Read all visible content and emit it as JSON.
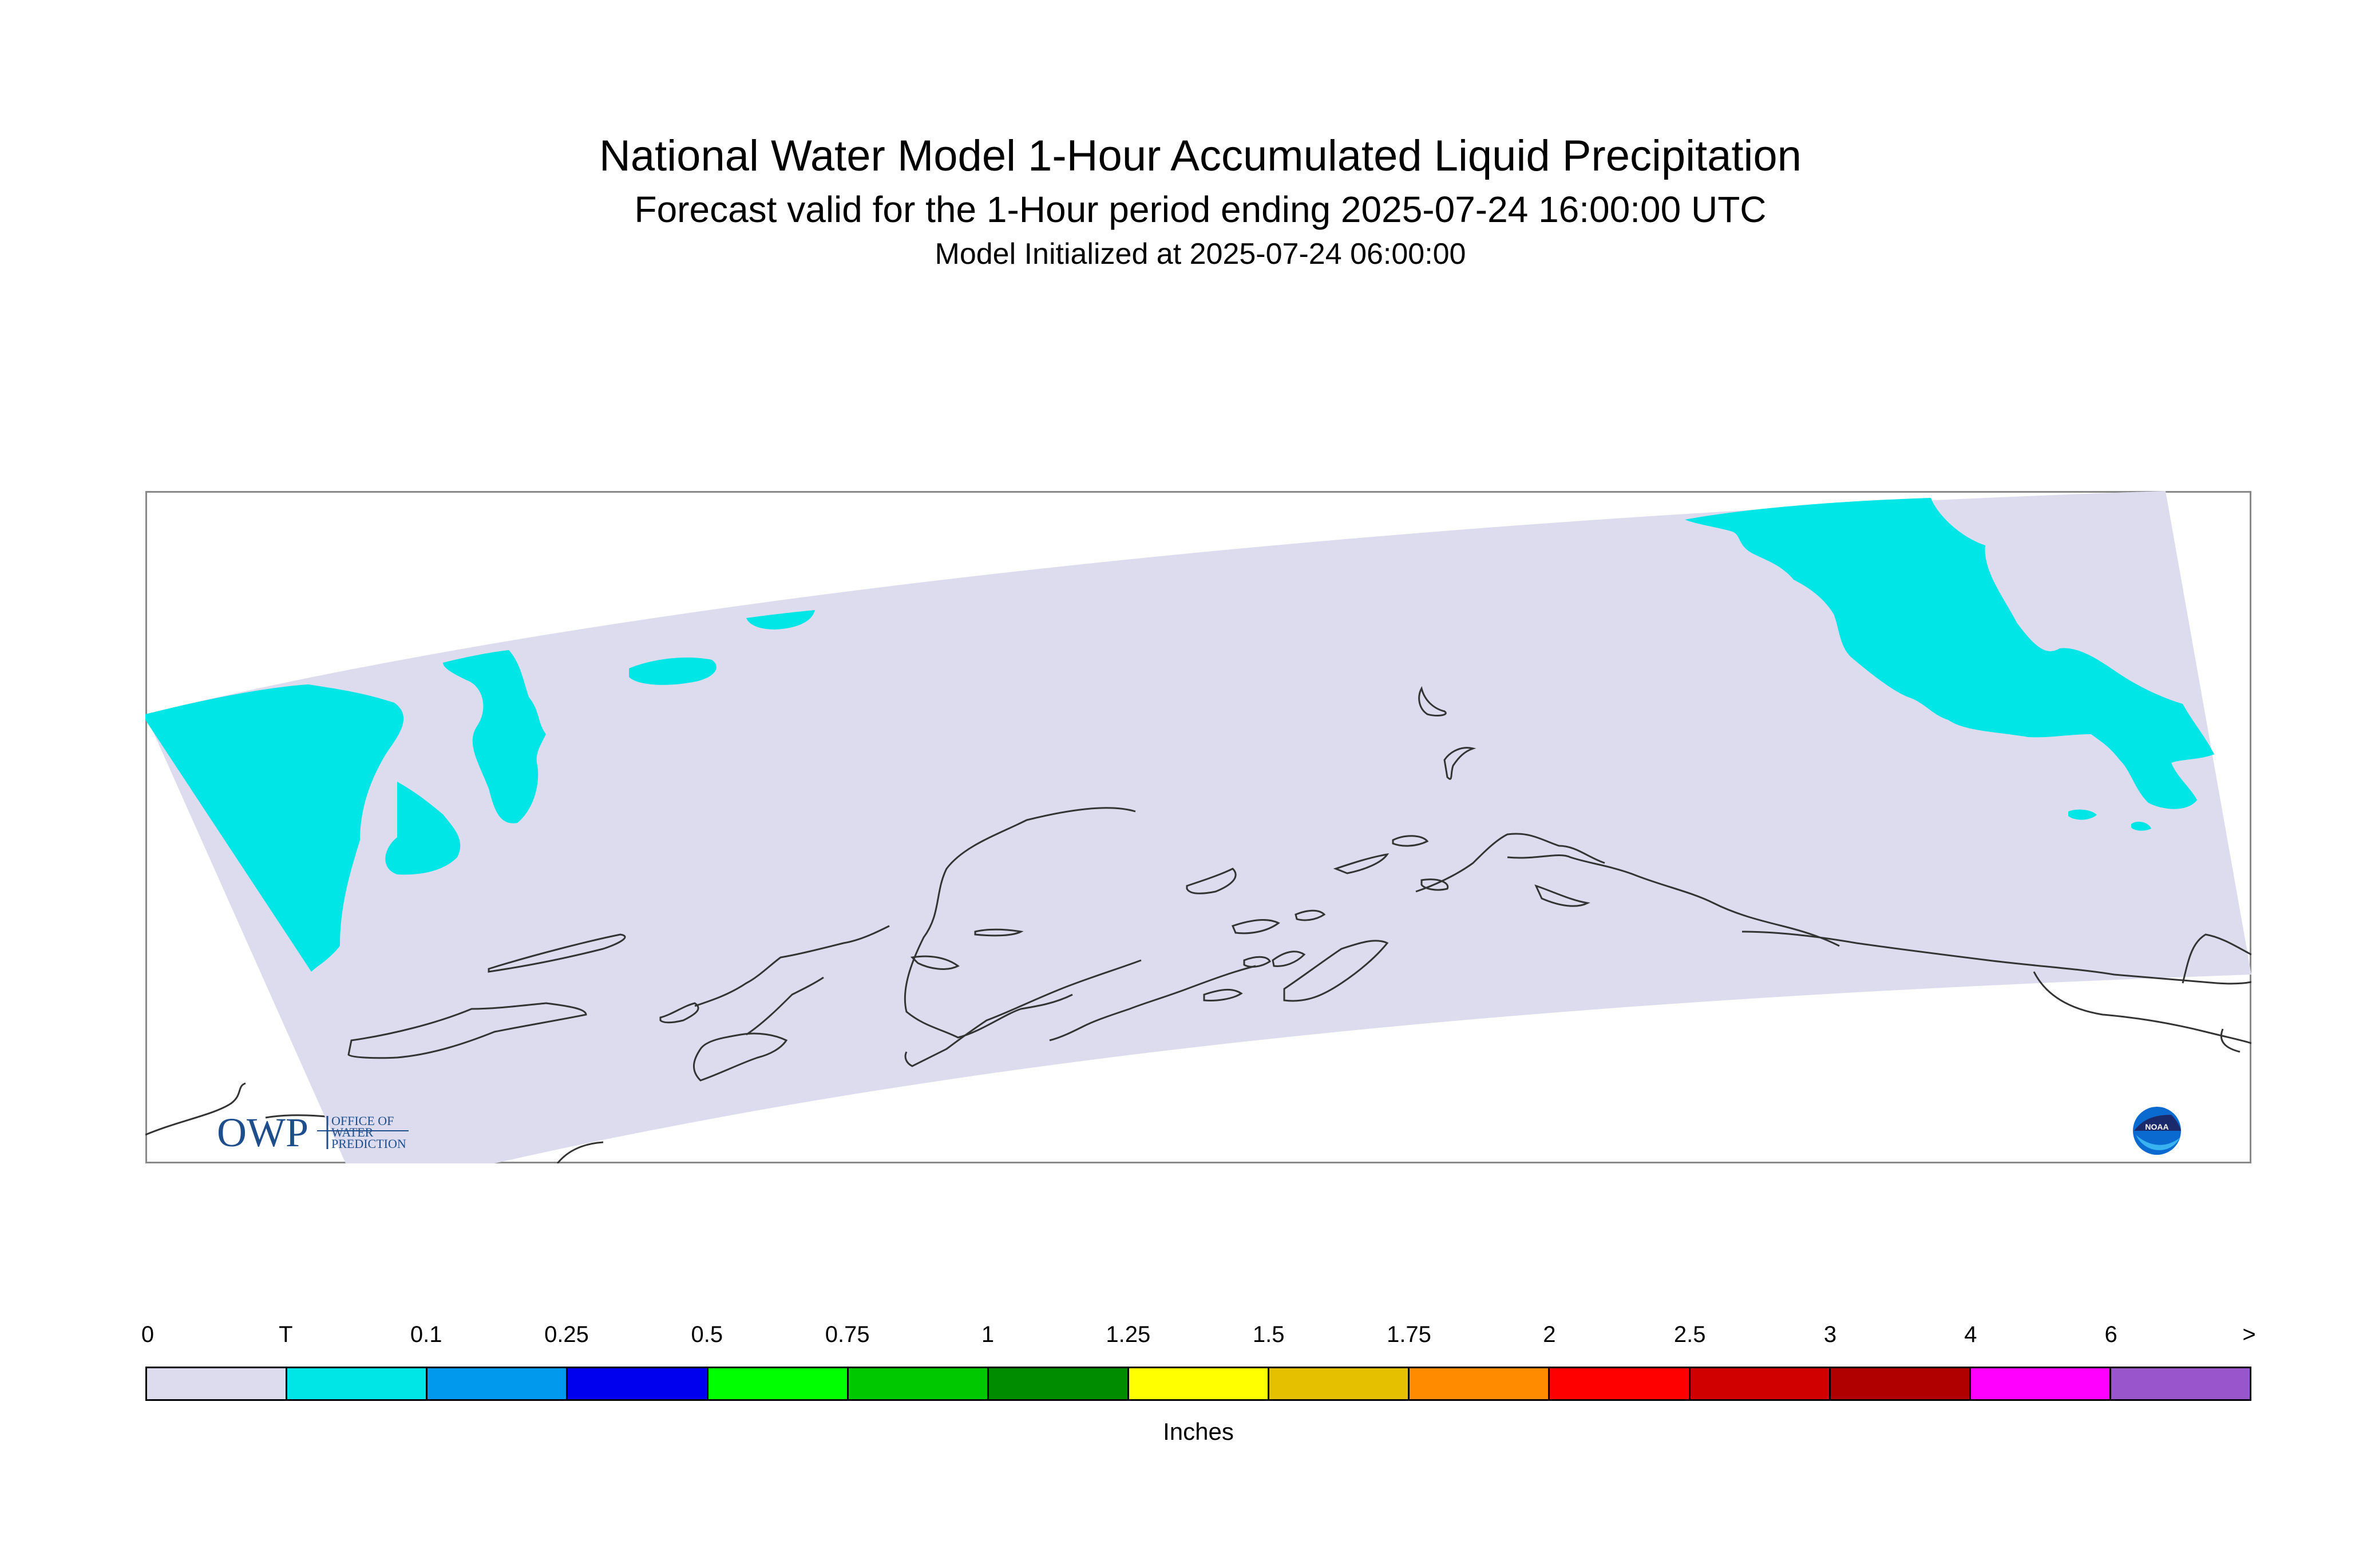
{
  "header": {
    "title": "National Water Model 1-Hour Accumulated Liquid Precipitation",
    "subtitle": "Forecast valid for the 1-Hour period ending 2025-07-24 16:00:00 UTC",
    "initialized": "Model Initialized at 2025-07-24 06:00:00"
  },
  "map": {
    "domain_color": "#dcdcee",
    "trace_color": "#00e5e5",
    "coast_color": "#333333",
    "logos": {
      "owp": {
        "letters": "OWP",
        "line1": "OFFICE OF",
        "line2": "WATER",
        "line3": "PREDICTION",
        "color": "#1f4e8c"
      },
      "noaa": {
        "text": "NOAA",
        "icon": "noaa-seal-icon"
      }
    }
  },
  "legend": {
    "units": "Inches",
    "tick_labels": [
      "0",
      "T",
      "0.1",
      "0.25",
      "0.5",
      "0.75",
      "1",
      "1.25",
      "1.5",
      "1.75",
      "2",
      "2.5",
      "3",
      "4",
      "6",
      ">"
    ],
    "colors": [
      "#dcdcee",
      "#00e5e5",
      "#0099ee",
      "#0000ee",
      "#00ff00",
      "#00c800",
      "#008c00",
      "#ffff00",
      "#e5c000",
      "#ff8c00",
      "#ff0000",
      "#d00000",
      "#b00000",
      "#ff00ff",
      "#9955cc"
    ]
  }
}
